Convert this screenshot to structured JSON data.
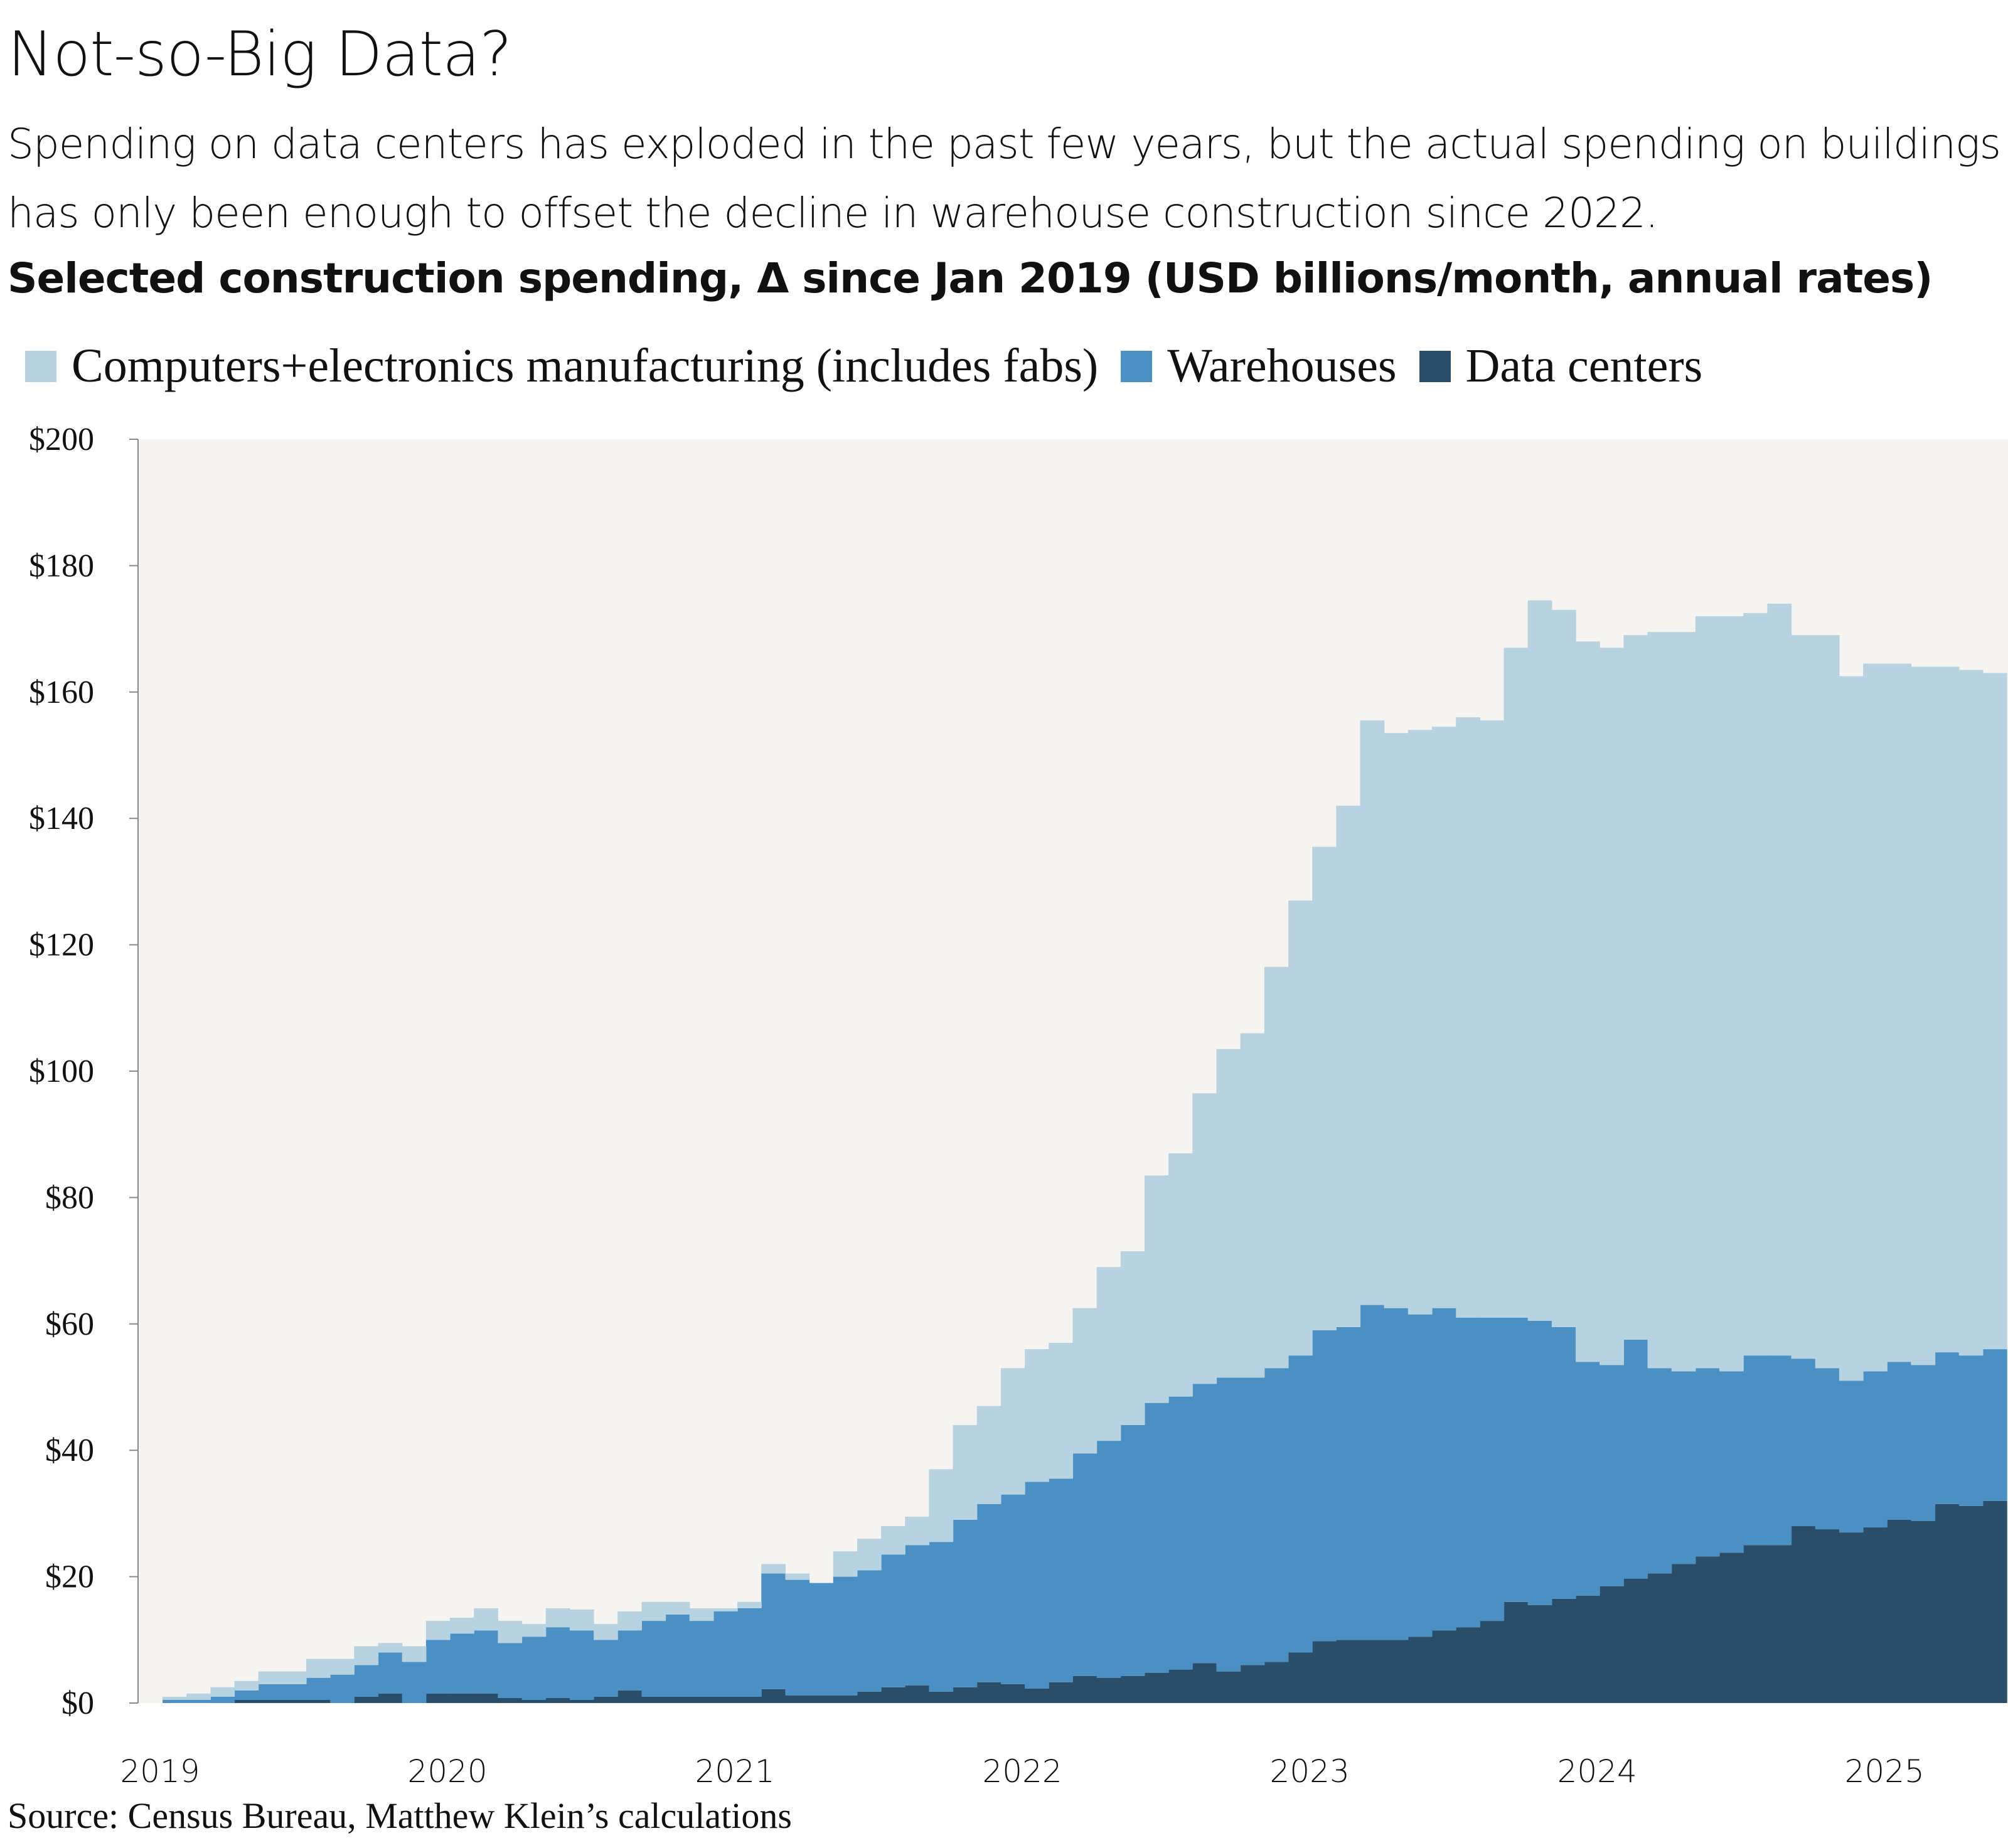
{
  "header": {
    "title": "Not-so-Big Data?",
    "subtitle": "Spending on data centers has exploded in the past few years, but the actual spending on buildings has only been enough to offset the decline in warehouse construction since 2022.",
    "chart_heading": "Selected construction spending, Δ since Jan 2019 (USD billions/month, annual rates)"
  },
  "source": "Source: Census Bureau, Matthew Klein’s calculations",
  "colors": {
    "computers": "#b7d2e0",
    "warehouses": "#4a90c4",
    "datacenters": "#2a4d69",
    "plot_bg": "#f6f4f0"
  },
  "chart_data": {
    "type": "area",
    "stacked": true,
    "step": true,
    "title": "Selected construction spending, Δ since Jan 2019 (USD billions/month, annual rates)",
    "xlabel": "",
    "ylabel": "",
    "x_start": "2019-01",
    "x_frequency": "monthly",
    "x_ticks": [
      "2019",
      "2020",
      "2021",
      "2022",
      "2023",
      "2024",
      "2025"
    ],
    "y_ticks": [
      "$0",
      "$20",
      "$40",
      "$60",
      "$80",
      "$100",
      "$120",
      "$140",
      "$160",
      "$180",
      "$200"
    ],
    "ylim": [
      0,
      200
    ],
    "grid": false,
    "legend": "top",
    "series": [
      {
        "name": "Data centers",
        "color": "#2a4d69",
        "values": [
          0,
          0,
          0,
          0.5,
          0.5,
          0.5,
          0.5,
          0,
          1,
          1.5,
          0,
          1.5,
          1.5,
          1.5,
          0.8,
          0.5,
          0.8,
          0.5,
          1,
          2,
          1,
          1,
          1,
          1,
          1,
          2.2,
          1.2,
          1.2,
          1.2,
          1.8,
          2.5,
          2.8,
          1.8,
          2.5,
          3.3,
          3,
          2.3,
          3.3,
          4.3,
          4,
          4.3,
          4.8,
          5.3,
          6.3,
          5,
          6,
          6.5,
          8,
          9.8,
          10,
          10,
          10,
          10.5,
          11.5,
          12,
          13,
          16,
          15.5,
          16.5,
          17,
          18.5,
          19.7,
          20.5,
          22,
          23.2,
          23.8,
          25,
          25,
          28,
          27.5,
          27,
          27.8,
          29,
          28.8,
          31.5,
          31.2,
          32
        ]
      },
      {
        "name": "Warehouses",
        "color": "#4a90c4",
        "values": [
          0.5,
          0.5,
          1,
          1.5,
          2.5,
          2.5,
          3.5,
          4.5,
          5,
          6.5,
          6.5,
          8.5,
          9.5,
          10,
          8.7,
          10,
          11.2,
          11,
          9,
          9.5,
          12,
          13,
          12,
          13.5,
          14,
          18.3,
          18.3,
          17.8,
          18.8,
          19.2,
          21,
          22.2,
          23.7,
          26.5,
          28.2,
          30,
          32.7,
          32.2,
          35.2,
          37.5,
          39.7,
          42.7,
          43.2,
          44.2,
          46.5,
          45.5,
          46.5,
          47,
          49.2,
          49.5,
          53,
          52.5,
          51,
          51,
          49,
          48,
          45,
          45,
          43,
          37,
          35,
          37.8,
          32.5,
          30.5,
          29.8,
          28.7,
          30,
          30,
          26.5,
          25.5,
          24,
          24.7,
          25,
          24.7,
          24,
          23.8,
          24
        ]
      },
      {
        "name": "Computers+electronics manufacturing (includes fabs)",
        "color": "#b7d2e0",
        "values": [
          0.5,
          1,
          1.5,
          1.5,
          2,
          2,
          3,
          2.5,
          3,
          1.5,
          2.5,
          3,
          2.5,
          3.5,
          3.5,
          2,
          3,
          3.3,
          2.5,
          3,
          3,
          2,
          2,
          0.5,
          1,
          1.5,
          1,
          0,
          4,
          5,
          4.5,
          4.5,
          11.5,
          15,
          15.5,
          20,
          21,
          21.5,
          23,
          27.5,
          27.5,
          36,
          38.5,
          46,
          52,
          54.5,
          63.5,
          72,
          76.5,
          82.5,
          92.5,
          91,
          92.5,
          92,
          95,
          94.5,
          106,
          114,
          113.5,
          114,
          113.5,
          111.5,
          116.5,
          117,
          119,
          119.5,
          117.5,
          119,
          114.5,
          116,
          111.5,
          112,
          110.5,
          110.5,
          108.5,
          108.5,
          107
        ]
      }
    ]
  }
}
